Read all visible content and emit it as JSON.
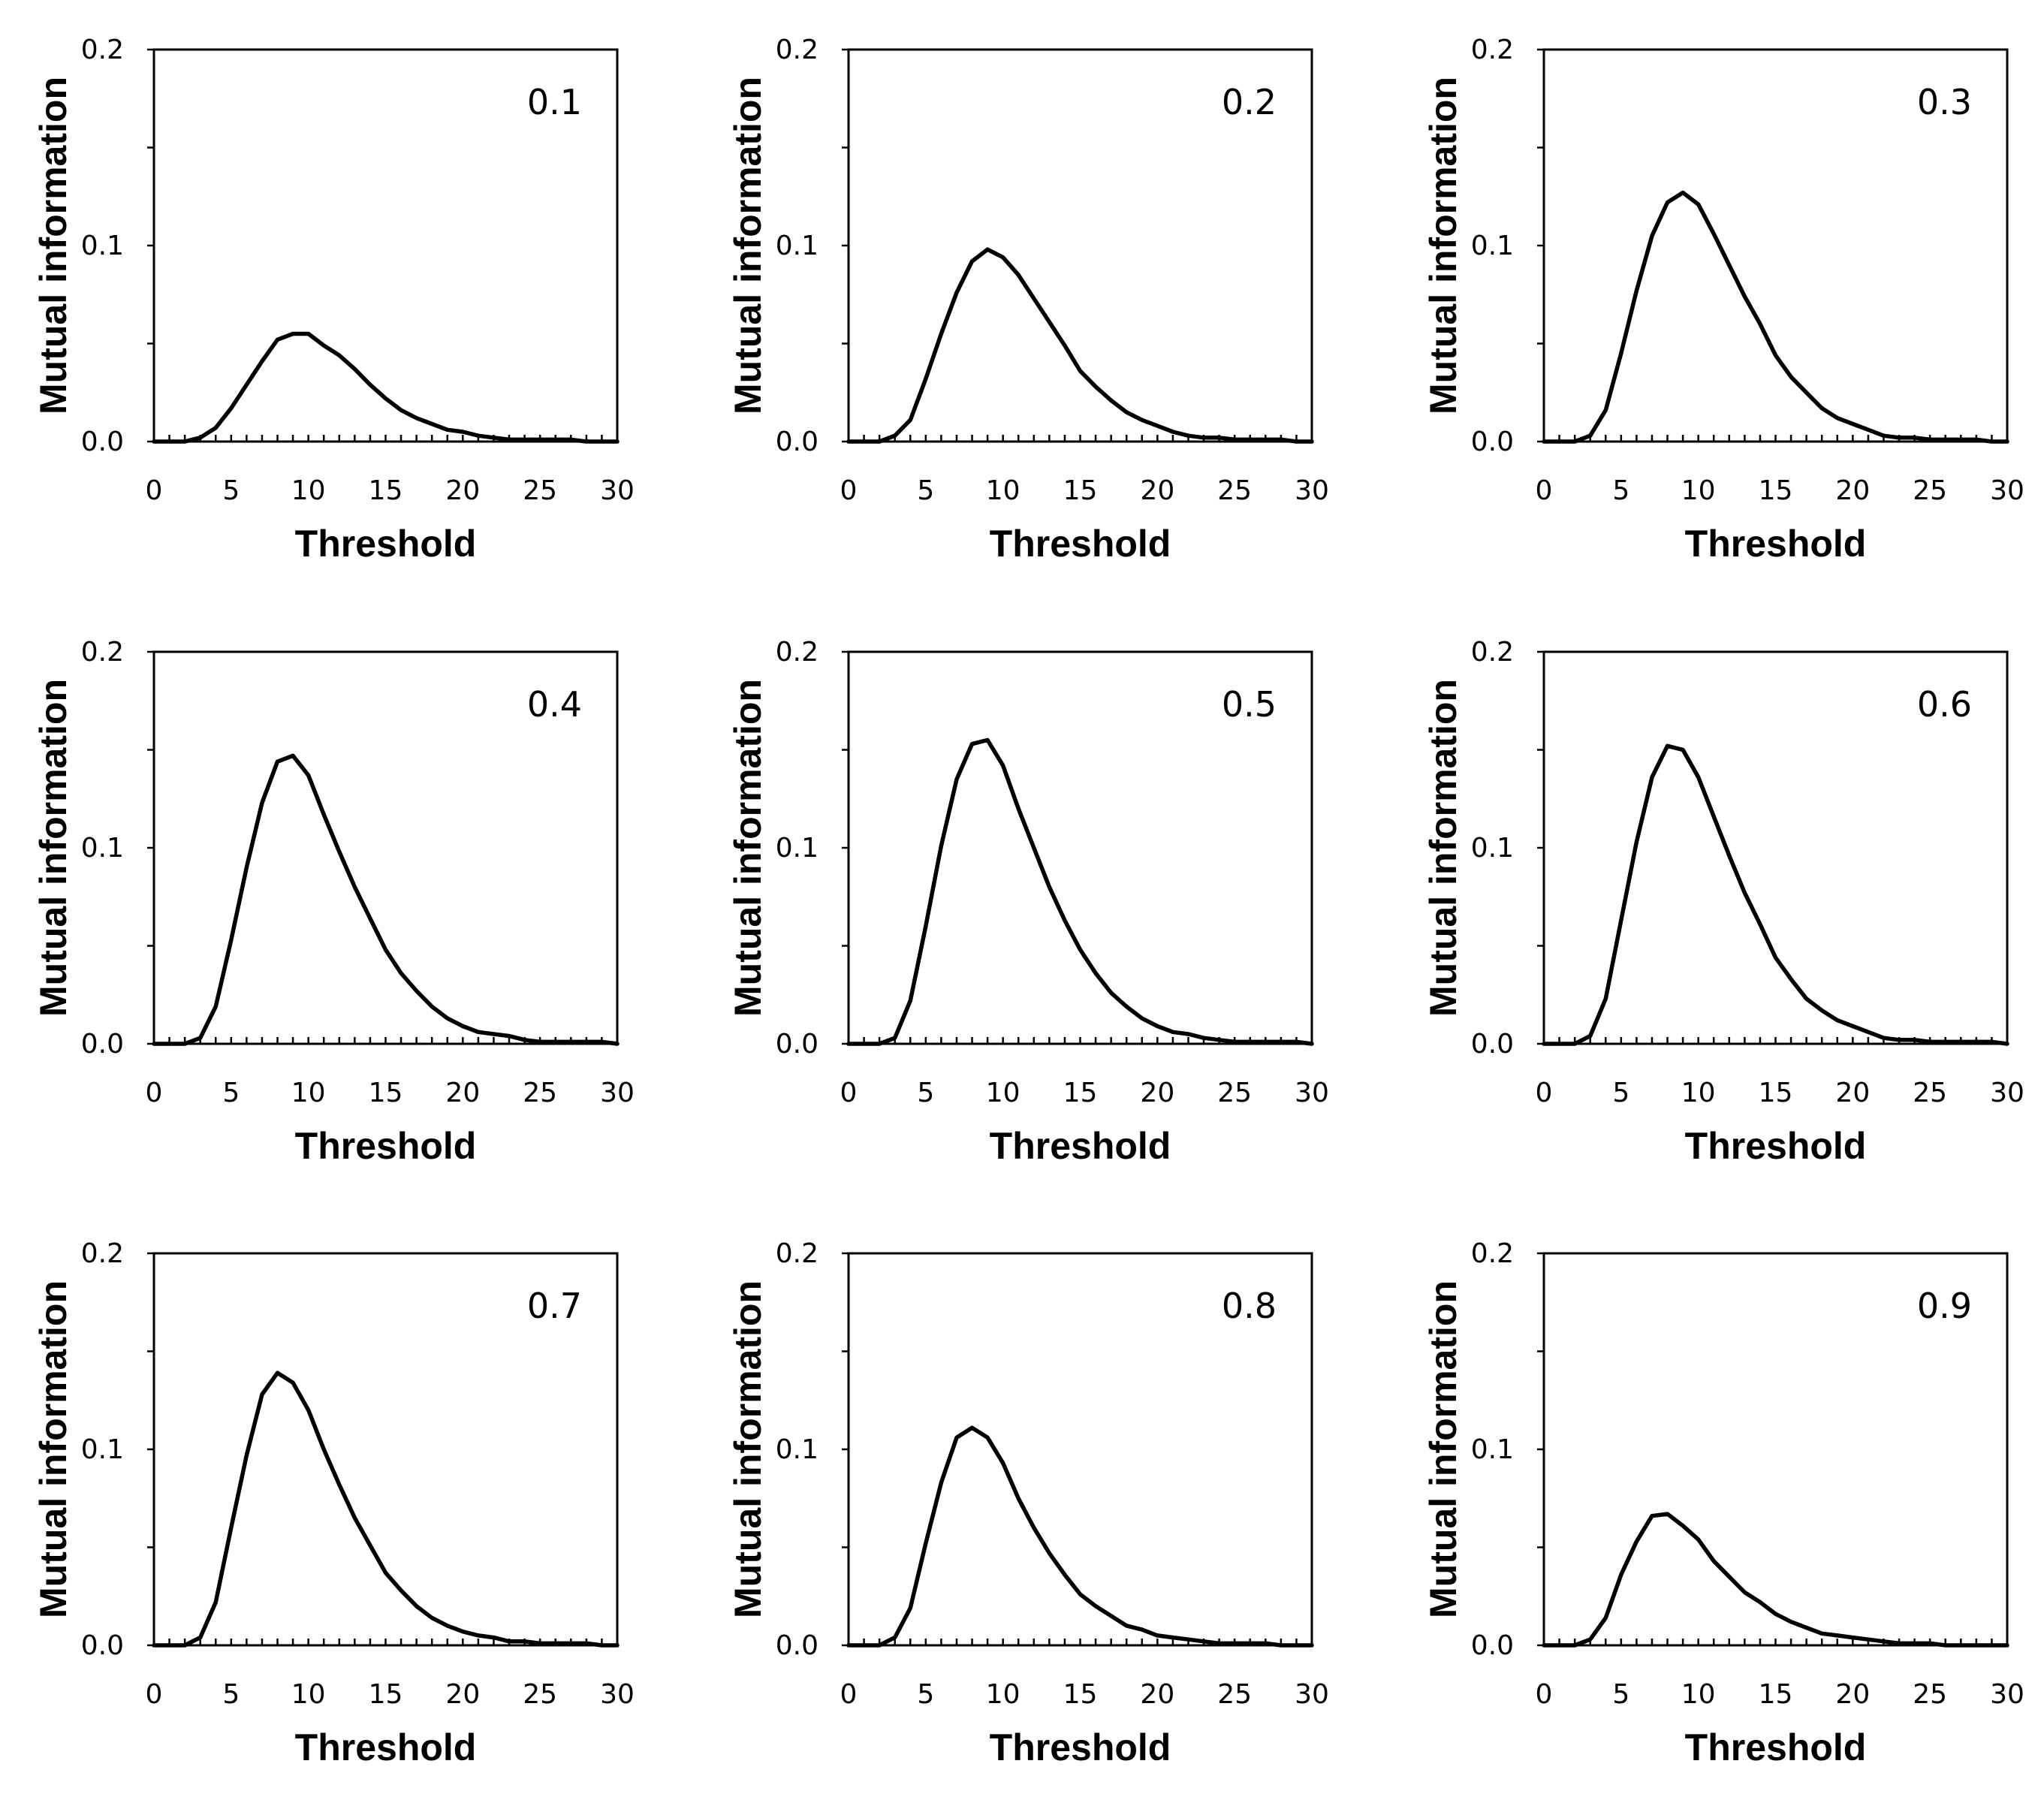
{
  "chart_data": [
    {
      "type": "line",
      "label": "0.1",
      "xlabel": "Threshold",
      "ylabel": "Mutual information",
      "xlim": [
        0,
        30
      ],
      "ylim": [
        0,
        0.2
      ],
      "xticks": [
        "0",
        "5",
        "10",
        "15",
        "20",
        "25",
        "30"
      ],
      "yticks": [
        "0.0",
        "0.1",
        "0.2"
      ],
      "x": [
        0,
        1,
        2,
        3,
        4,
        5,
        6,
        7,
        8,
        9,
        10,
        11,
        12,
        13,
        14,
        15,
        16,
        17,
        18,
        19,
        20,
        21,
        22,
        23,
        24,
        25,
        26,
        27,
        28,
        29,
        30
      ],
      "y": [
        0,
        0,
        0,
        0.002,
        0.007,
        0.017,
        0.029,
        0.041,
        0.052,
        0.055,
        0.055,
        0.049,
        0.044,
        0.037,
        0.029,
        0.022,
        0.016,
        0.012,
        0.009,
        0.006,
        0.005,
        0.003,
        0.002,
        0.001,
        0.001,
        0.001,
        0.001,
        0.001,
        0,
        0,
        0
      ]
    },
    {
      "type": "line",
      "label": "0.2",
      "xlabel": "Threshold",
      "ylabel": "Mutual information",
      "xlim": [
        0,
        30
      ],
      "ylim": [
        0,
        0.2
      ],
      "xticks": [
        "0",
        "5",
        "10",
        "15",
        "20",
        "25",
        "30"
      ],
      "yticks": [
        "0.0",
        "0.1",
        "0.2"
      ],
      "x": [
        0,
        1,
        2,
        3,
        4,
        5,
        6,
        7,
        8,
        9,
        10,
        11,
        12,
        13,
        14,
        15,
        16,
        17,
        18,
        19,
        20,
        21,
        22,
        23,
        24,
        25,
        26,
        27,
        28,
        29,
        30
      ],
      "y": [
        0,
        0,
        0,
        0.003,
        0.011,
        0.032,
        0.055,
        0.076,
        0.092,
        0.098,
        0.094,
        0.085,
        0.073,
        0.061,
        0.049,
        0.036,
        0.028,
        0.021,
        0.015,
        0.011,
        0.008,
        0.005,
        0.003,
        0.002,
        0.002,
        0.001,
        0.001,
        0.001,
        0.001,
        0,
        0
      ]
    },
    {
      "type": "line",
      "label": "0.3",
      "xlabel": "Threshold",
      "ylabel": "Mutual information",
      "xlim": [
        0,
        30
      ],
      "ylim": [
        0,
        0.2
      ],
      "xticks": [
        "0",
        "5",
        "10",
        "15",
        "20",
        "25",
        "30"
      ],
      "yticks": [
        "0.0",
        "0.1",
        "0.2"
      ],
      "x": [
        0,
        1,
        2,
        3,
        4,
        5,
        6,
        7,
        8,
        9,
        10,
        11,
        12,
        13,
        14,
        15,
        16,
        17,
        18,
        19,
        20,
        21,
        22,
        23,
        24,
        25,
        26,
        27,
        28,
        29,
        30
      ],
      "y": [
        0,
        0,
        0,
        0.003,
        0.016,
        0.045,
        0.077,
        0.105,
        0.122,
        0.127,
        0.121,
        0.106,
        0.09,
        0.074,
        0.06,
        0.044,
        0.033,
        0.025,
        0.017,
        0.012,
        0.009,
        0.006,
        0.003,
        0.002,
        0.002,
        0.001,
        0.001,
        0.001,
        0.001,
        0,
        0
      ]
    },
    {
      "type": "line",
      "label": "0.4",
      "xlabel": "Threshold",
      "ylabel": "Mutual information",
      "xlim": [
        0,
        30
      ],
      "ylim": [
        0,
        0.2
      ],
      "xticks": [
        "0",
        "5",
        "10",
        "15",
        "20",
        "25",
        "30"
      ],
      "yticks": [
        "0.0",
        "0.1",
        "0.2"
      ],
      "x": [
        0,
        1,
        2,
        3,
        4,
        5,
        6,
        7,
        8,
        9,
        10,
        11,
        12,
        13,
        14,
        15,
        16,
        17,
        18,
        19,
        20,
        21,
        22,
        23,
        24,
        25,
        26,
        27,
        28,
        29,
        30
      ],
      "y": [
        0,
        0,
        0,
        0.003,
        0.019,
        0.053,
        0.09,
        0.123,
        0.144,
        0.147,
        0.137,
        0.117,
        0.098,
        0.08,
        0.064,
        0.048,
        0.036,
        0.027,
        0.019,
        0.013,
        0.009,
        0.006,
        0.005,
        0.004,
        0.002,
        0.001,
        0.001,
        0.001,
        0.001,
        0.001,
        0
      ]
    },
    {
      "type": "line",
      "label": "0.5",
      "xlabel": "Threshold",
      "ylabel": "Mutual information",
      "xlim": [
        0,
        30
      ],
      "ylim": [
        0,
        0.2
      ],
      "xticks": [
        "0",
        "5",
        "10",
        "15",
        "20",
        "25",
        "30"
      ],
      "yticks": [
        "0.0",
        "0.1",
        "0.2"
      ],
      "x": [
        0,
        1,
        2,
        3,
        4,
        5,
        6,
        7,
        8,
        9,
        10,
        11,
        12,
        13,
        14,
        15,
        16,
        17,
        18,
        19,
        20,
        21,
        22,
        23,
        24,
        25,
        26,
        27,
        28,
        29,
        30
      ],
      "y": [
        0,
        0,
        0,
        0.003,
        0.022,
        0.06,
        0.101,
        0.135,
        0.153,
        0.155,
        0.142,
        0.12,
        0.1,
        0.08,
        0.063,
        0.048,
        0.036,
        0.026,
        0.019,
        0.013,
        0.009,
        0.006,
        0.005,
        0.003,
        0.002,
        0.001,
        0.001,
        0.001,
        0.001,
        0.001,
        0
      ]
    },
    {
      "type": "line",
      "label": "0.6",
      "xlabel": "Threshold",
      "ylabel": "Mutual information",
      "xlim": [
        0,
        30
      ],
      "ylim": [
        0,
        0.2
      ],
      "xticks": [
        "0",
        "5",
        "10",
        "15",
        "20",
        "25",
        "30"
      ],
      "yticks": [
        "0.0",
        "0.1",
        "0.2"
      ],
      "x": [
        0,
        1,
        2,
        3,
        4,
        5,
        6,
        7,
        8,
        9,
        10,
        11,
        12,
        13,
        14,
        15,
        16,
        17,
        18,
        19,
        20,
        21,
        22,
        23,
        24,
        25,
        26,
        27,
        28,
        29,
        30
      ],
      "y": [
        0,
        0,
        0,
        0.004,
        0.023,
        0.063,
        0.103,
        0.136,
        0.152,
        0.15,
        0.136,
        0.116,
        0.096,
        0.077,
        0.061,
        0.044,
        0.033,
        0.023,
        0.017,
        0.012,
        0.009,
        0.006,
        0.003,
        0.002,
        0.002,
        0.001,
        0.001,
        0.001,
        0.001,
        0.001,
        0
      ]
    },
    {
      "type": "line",
      "label": "0.7",
      "xlabel": "Threshold",
      "ylabel": "Mutual information",
      "xlim": [
        0,
        30
      ],
      "ylim": [
        0,
        0.2
      ],
      "xticks": [
        "0",
        "5",
        "10",
        "15",
        "20",
        "25",
        "30"
      ],
      "yticks": [
        "0.0",
        "0.1",
        "0.2"
      ],
      "x": [
        0,
        1,
        2,
        3,
        4,
        5,
        6,
        7,
        8,
        9,
        10,
        11,
        12,
        13,
        14,
        15,
        16,
        17,
        18,
        19,
        20,
        21,
        22,
        23,
        24,
        25,
        26,
        27,
        28,
        29,
        30
      ],
      "y": [
        0,
        0,
        0,
        0.004,
        0.022,
        0.06,
        0.097,
        0.128,
        0.139,
        0.134,
        0.12,
        0.1,
        0.082,
        0.065,
        0.051,
        0.037,
        0.028,
        0.02,
        0.014,
        0.01,
        0.007,
        0.005,
        0.004,
        0.002,
        0.002,
        0.001,
        0.001,
        0.001,
        0.001,
        0,
        0
      ]
    },
    {
      "type": "line",
      "label": "0.8",
      "xlabel": "Threshold",
      "ylabel": "Mutual information",
      "xlim": [
        0,
        30
      ],
      "ylim": [
        0,
        0.2
      ],
      "xticks": [
        "0",
        "5",
        "10",
        "15",
        "20",
        "25",
        "30"
      ],
      "yticks": [
        "0.0",
        "0.1",
        "0.2"
      ],
      "x": [
        0,
        1,
        2,
        3,
        4,
        5,
        6,
        7,
        8,
        9,
        10,
        11,
        12,
        13,
        14,
        15,
        16,
        17,
        18,
        19,
        20,
        21,
        22,
        23,
        24,
        25,
        26,
        27,
        28,
        29,
        30
      ],
      "y": [
        0,
        0,
        0,
        0.004,
        0.019,
        0.052,
        0.083,
        0.106,
        0.111,
        0.106,
        0.093,
        0.075,
        0.06,
        0.047,
        0.036,
        0.026,
        0.02,
        0.015,
        0.01,
        0.008,
        0.005,
        0.004,
        0.003,
        0.002,
        0.001,
        0.001,
        0.001,
        0.001,
        0,
        0,
        0
      ]
    },
    {
      "type": "line",
      "label": "0.9",
      "xlabel": "Threshold",
      "ylabel": "Mutual information",
      "xlim": [
        0,
        30
      ],
      "ylim": [
        0,
        0.2
      ],
      "xticks": [
        "0",
        "5",
        "10",
        "15",
        "20",
        "25",
        "30"
      ],
      "yticks": [
        "0.0",
        "0.1",
        "0.2"
      ],
      "x": [
        0,
        1,
        2,
        3,
        4,
        5,
        6,
        7,
        8,
        9,
        10,
        11,
        12,
        13,
        14,
        15,
        16,
        17,
        18,
        19,
        20,
        21,
        22,
        23,
        24,
        25,
        26,
        27,
        28,
        29,
        30
      ],
      "y": [
        0,
        0,
        0,
        0.003,
        0.014,
        0.036,
        0.053,
        0.066,
        0.067,
        0.061,
        0.054,
        0.043,
        0.035,
        0.027,
        0.022,
        0.016,
        0.012,
        0.009,
        0.006,
        0.005,
        0.004,
        0.003,
        0.002,
        0.001,
        0.001,
        0.001,
        0,
        0,
        0,
        0,
        0
      ]
    }
  ]
}
